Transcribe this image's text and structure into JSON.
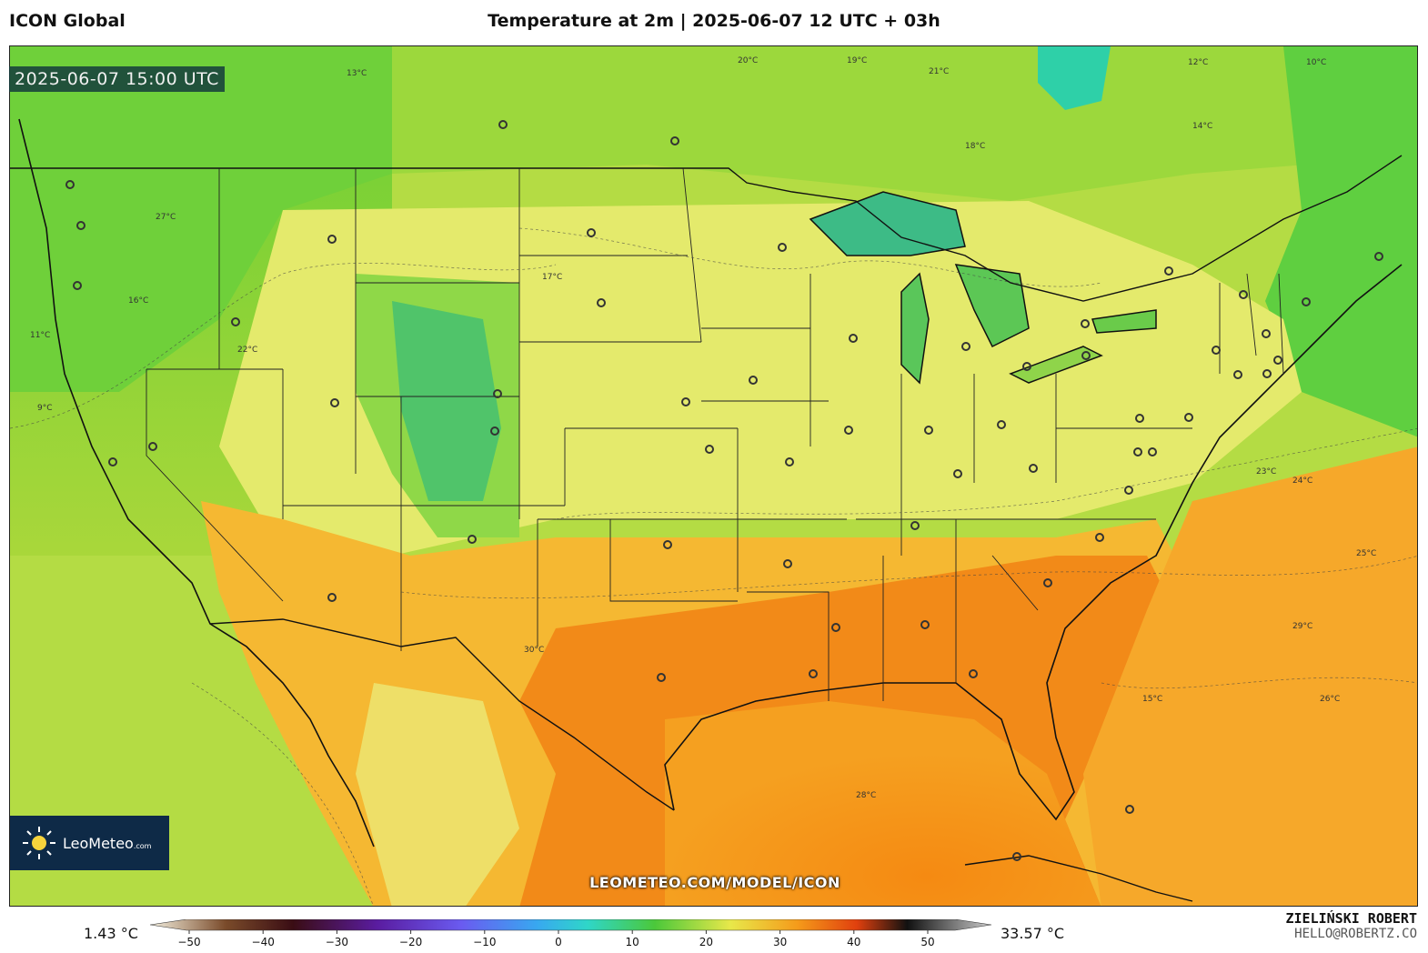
{
  "header": {
    "model_name": "ICON Global",
    "title": "Temperature at 2m | 2025-06-07 12 UTC + 03h"
  },
  "map": {
    "valid_time": "2025-06-07 15:00 UTC",
    "watermark_url": "LEOMETEO.COM/MODEL/ICON",
    "isotherm_labels": [
      "13°C",
      "20°C",
      "19°C",
      "21°C",
      "14°C",
      "12°C",
      "10°C",
      "22°C",
      "18°C",
      "16°C",
      "17°C",
      "27°C",
      "11°C",
      "9°C",
      "28°C",
      "30°C",
      "24°C",
      "26°C",
      "23°C",
      "29°C",
      "25°C",
      "15°C"
    ],
    "palette": {
      "cold": "#2fbf8f",
      "cool": "#5cc92d",
      "mild": "#a8d93c",
      "warm": "#eaea6a",
      "hot": "#f5b52a",
      "very_hot": "#f27a12",
      "sea_cool": "#7dd23a",
      "sea_warm": "#f7a625"
    }
  },
  "logo": {
    "name": "LeoMeteo",
    "suffix": ".com"
  },
  "colorbar": {
    "min_label": "1.43 °C",
    "max_label": "33.57 °C",
    "ticks": [
      "−50",
      "−40",
      "−30",
      "−20",
      "−10",
      "0",
      "10",
      "20",
      "30",
      "40",
      "50"
    ],
    "stops": [
      "#f4f0e0",
      "#7a4b2a",
      "#3a0d14",
      "#5a1ca0",
      "#6a5bf0",
      "#38a8f0",
      "#2fd6c8",
      "#4bc83a",
      "#e8e84a",
      "#f59a1a",
      "#e0400e",
      "#111111",
      "#cccccc"
    ]
  },
  "author": {
    "name": "ZIELIŃSKI ROBERT",
    "email": "HELLO@ROBERTZ.CO"
  }
}
